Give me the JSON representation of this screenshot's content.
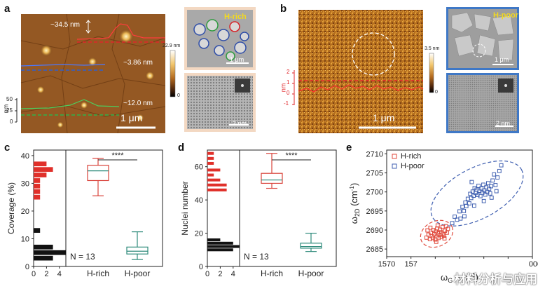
{
  "panels": {
    "a": {
      "letter": "a",
      "height_annotations": [
        "~34.5 nm",
        "~3.86 nm",
        "~12.0 nm"
      ],
      "profile_axis_label": "nm",
      "profile_ticks": [
        "50",
        "25",
        "0"
      ],
      "scalebar": "1 μm",
      "colorbar_max": "22.9 nm",
      "colorbar_min": "0",
      "inset_top_label": "H-rich",
      "inset_top_scalebar": "1 μm",
      "inset_bottom_scalebar": "2 nm"
    },
    "b": {
      "letter": "b",
      "profile_axis_label": "nm",
      "profile_ticks": [
        "2",
        "1",
        "0",
        "-1"
      ],
      "scalebar": "1 μm",
      "colorbar_max": "3.5 nm",
      "colorbar_min": "0",
      "inset_top_label": "H-poor",
      "inset_top_scalebar": "1 μm",
      "inset_bottom_scalebar": "2 nm"
    },
    "c": {
      "letter": "c"
    },
    "d": {
      "letter": "d"
    },
    "e": {
      "letter": "e"
    }
  },
  "watermark": "材料分析与应用",
  "chart_data": [
    {
      "id": "c",
      "type": "box",
      "ylabel": "Coverage (%)",
      "ylim": [
        0,
        42
      ],
      "yticks": [
        0,
        10,
        20,
        30,
        40
      ],
      "hist_xlabel_ticks": [
        0,
        2,
        4
      ],
      "hist_xlim": [
        0,
        5
      ],
      "categories": [
        "H-rich",
        "H-poor"
      ],
      "annotation_n": "N = 13",
      "significance": "****",
      "hist_bins": [
        {
          "y": 25,
          "count": 1,
          "group": "H-rich"
        },
        {
          "y": 27,
          "count": 1,
          "group": "H-rich"
        },
        {
          "y": 29,
          "count": 1,
          "group": "H-rich"
        },
        {
          "y": 31,
          "count": 1,
          "group": "H-rich"
        },
        {
          "y": 33,
          "count": 2,
          "group": "H-rich"
        },
        {
          "y": 35,
          "count": 3,
          "group": "H-rich"
        },
        {
          "y": 37,
          "count": 2,
          "group": "H-rich"
        },
        {
          "y": 13,
          "count": 1,
          "group": "H-poor"
        },
        {
          "y": 3,
          "count": 3,
          "group": "H-poor"
        },
        {
          "y": 5,
          "count": 5,
          "group": "H-poor"
        },
        {
          "y": 7,
          "count": 3,
          "group": "H-poor"
        }
      ],
      "boxes": [
        {
          "name": "H-rich",
          "min": 25.5,
          "q1": 31,
          "median": 34.5,
          "q3": 36.5,
          "max": 39,
          "color": "#d9423a"
        },
        {
          "name": "H-poor",
          "min": 2.5,
          "q1": 4.5,
          "median": 5.5,
          "q3": 7,
          "max": 12.5,
          "color": "#2d8a7a"
        }
      ]
    },
    {
      "id": "d",
      "type": "box",
      "ylabel": "Nuclei number",
      "ylim": [
        0,
        70
      ],
      "yticks": [
        0,
        20,
        40,
        60
      ],
      "hist_xlabel_ticks": [
        0,
        2,
        4
      ],
      "hist_xlim": [
        0,
        5
      ],
      "categories": [
        "H-rich",
        "H-poor"
      ],
      "annotation_n": "N = 13",
      "significance": "****",
      "hist_bins": [
        {
          "y": 46,
          "count": 3,
          "group": "H-rich"
        },
        {
          "y": 49,
          "count": 3,
          "group": "H-rich"
        },
        {
          "y": 52,
          "count": 2,
          "group": "H-rich"
        },
        {
          "y": 55,
          "count": 1,
          "group": "H-rich"
        },
        {
          "y": 58,
          "count": 2,
          "group": "H-rich"
        },
        {
          "y": 62,
          "count": 1,
          "group": "H-rich"
        },
        {
          "y": 65,
          "count": 1,
          "group": "H-rich"
        },
        {
          "y": 68,
          "count": 1,
          "group": "H-rich"
        },
        {
          "y": 10,
          "count": 4,
          "group": "H-poor"
        },
        {
          "y": 12,
          "count": 5,
          "group": "H-poor"
        },
        {
          "y": 14,
          "count": 4,
          "group": "H-poor"
        },
        {
          "y": 16,
          "count": 2,
          "group": "H-poor"
        }
      ],
      "boxes": [
        {
          "name": "H-rich",
          "min": 47,
          "q1": 50,
          "median": 52,
          "q3": 56,
          "max": 68,
          "color": "#d9423a"
        },
        {
          "name": "H-poor",
          "min": 9,
          "q1": 11,
          "median": 12,
          "q3": 14,
          "max": 20,
          "color": "#2d8a7a"
        }
      ]
    },
    {
      "id": "e",
      "type": "scatter",
      "xlabel": "ω",
      "xlabel_sub": "G",
      "xlabel_unit": " (cm",
      "xlabel_sup": "-1",
      "xlabel_close": ")",
      "ylabel": "ω",
      "ylabel_sub": "2D",
      "ylabel_unit": " (cm",
      "ylabel_sup": "-1",
      "ylabel_close": ")",
      "xlim": [
        1570,
        1600
      ],
      "ylim": [
        2683,
        2711
      ],
      "xticks": [
        "1570",
        "157",
        "",
        "",
        "",
        "",
        "000"
      ],
      "yticks": [
        2685,
        2690,
        2695,
        2700,
        2705,
        2710
      ],
      "legend_position": "top-left",
      "series": [
        {
          "name": "H-rich",
          "color": "#e04a3c",
          "points": [
            [
              1578.2,
              2688.0
            ],
            [
              1578.6,
              2688.8
            ],
            [
              1578.9,
              2687.6
            ],
            [
              1579.1,
              2689.3
            ],
            [
              1579.3,
              2688.4
            ],
            [
              1579.5,
              2687.9
            ],
            [
              1579.6,
              2690.0
            ],
            [
              1579.8,
              2688.9
            ],
            [
              1580.0,
              2687.5
            ],
            [
              1580.1,
              2689.6
            ],
            [
              1580.3,
              2688.3
            ],
            [
              1580.4,
              2690.4
            ],
            [
              1580.6,
              2689.1
            ],
            [
              1580.7,
              2687.9
            ],
            [
              1580.9,
              2688.7
            ],
            [
              1581.0,
              2690.1
            ],
            [
              1581.2,
              2689.4
            ],
            [
              1581.3,
              2688.2
            ],
            [
              1581.5,
              2690.8
            ],
            [
              1581.6,
              2689.0
            ],
            [
              1581.8,
              2688.5
            ],
            [
              1582.0,
              2689.8
            ],
            [
              1582.2,
              2691.0
            ],
            [
              1582.4,
              2689.3
            ],
            [
              1579.0,
              2690.6
            ],
            [
              1580.5,
              2691.2
            ],
            [
              1581.9,
              2687.8
            ],
            [
              1578.4,
              2689.9
            ],
            [
              1582.6,
              2690.3
            ],
            [
              1580.2,
              2686.9
            ]
          ]
        },
        {
          "name": "H-poor",
          "color": "#3f5fb0",
          "points": [
            [
              1583.5,
              2691.8
            ],
            [
              1584.0,
              2693.5
            ],
            [
              1584.5,
              2692.7
            ],
            [
              1585.0,
              2694.9
            ],
            [
              1585.2,
              2693.0
            ],
            [
              1585.6,
              2696.1
            ],
            [
              1585.9,
              2695.0
            ],
            [
              1586.2,
              2697.2
            ],
            [
              1586.4,
              2696.3
            ],
            [
              1586.7,
              2698.2
            ],
            [
              1587.0,
              2697.0
            ],
            [
              1587.2,
              2699.5
            ],
            [
              1587.4,
              2698.4
            ],
            [
              1587.7,
              2700.1
            ],
            [
              1587.9,
              2699.0
            ],
            [
              1588.1,
              2701.0
            ],
            [
              1588.3,
              2699.7
            ],
            [
              1588.5,
              2700.6
            ],
            [
              1588.7,
              2699.2
            ],
            [
              1588.9,
              2701.6
            ],
            [
              1589.1,
              2700.3
            ],
            [
              1589.3,
              2698.9
            ],
            [
              1589.5,
              2700.9
            ],
            [
              1589.7,
              2699.8
            ],
            [
              1589.9,
              2701.9
            ],
            [
              1590.1,
              2700.4
            ],
            [
              1590.3,
              2699.3
            ],
            [
              1590.5,
              2701.2
            ],
            [
              1590.7,
              2700.0
            ],
            [
              1590.9,
              2702.3
            ],
            [
              1591.1,
              2700.8
            ],
            [
              1591.3,
              2699.6
            ],
            [
              1591.5,
              2701.5
            ],
            [
              1591.8,
              2703.0
            ],
            [
              1592.1,
              2704.6
            ],
            [
              1592.4,
              2701.8
            ],
            [
              1592.8,
              2703.8
            ],
            [
              1593.2,
              2705.5
            ],
            [
              1593.6,
              2707.0
            ],
            [
              1586.0,
              2693.6
            ],
            [
              1588.0,
              2696.4
            ],
            [
              1590.0,
              2697.6
            ],
            [
              1591.6,
              2698.5
            ],
            [
              1592.6,
              2700.2
            ],
            [
              1587.5,
              2702.6
            ]
          ]
        }
      ]
    }
  ]
}
